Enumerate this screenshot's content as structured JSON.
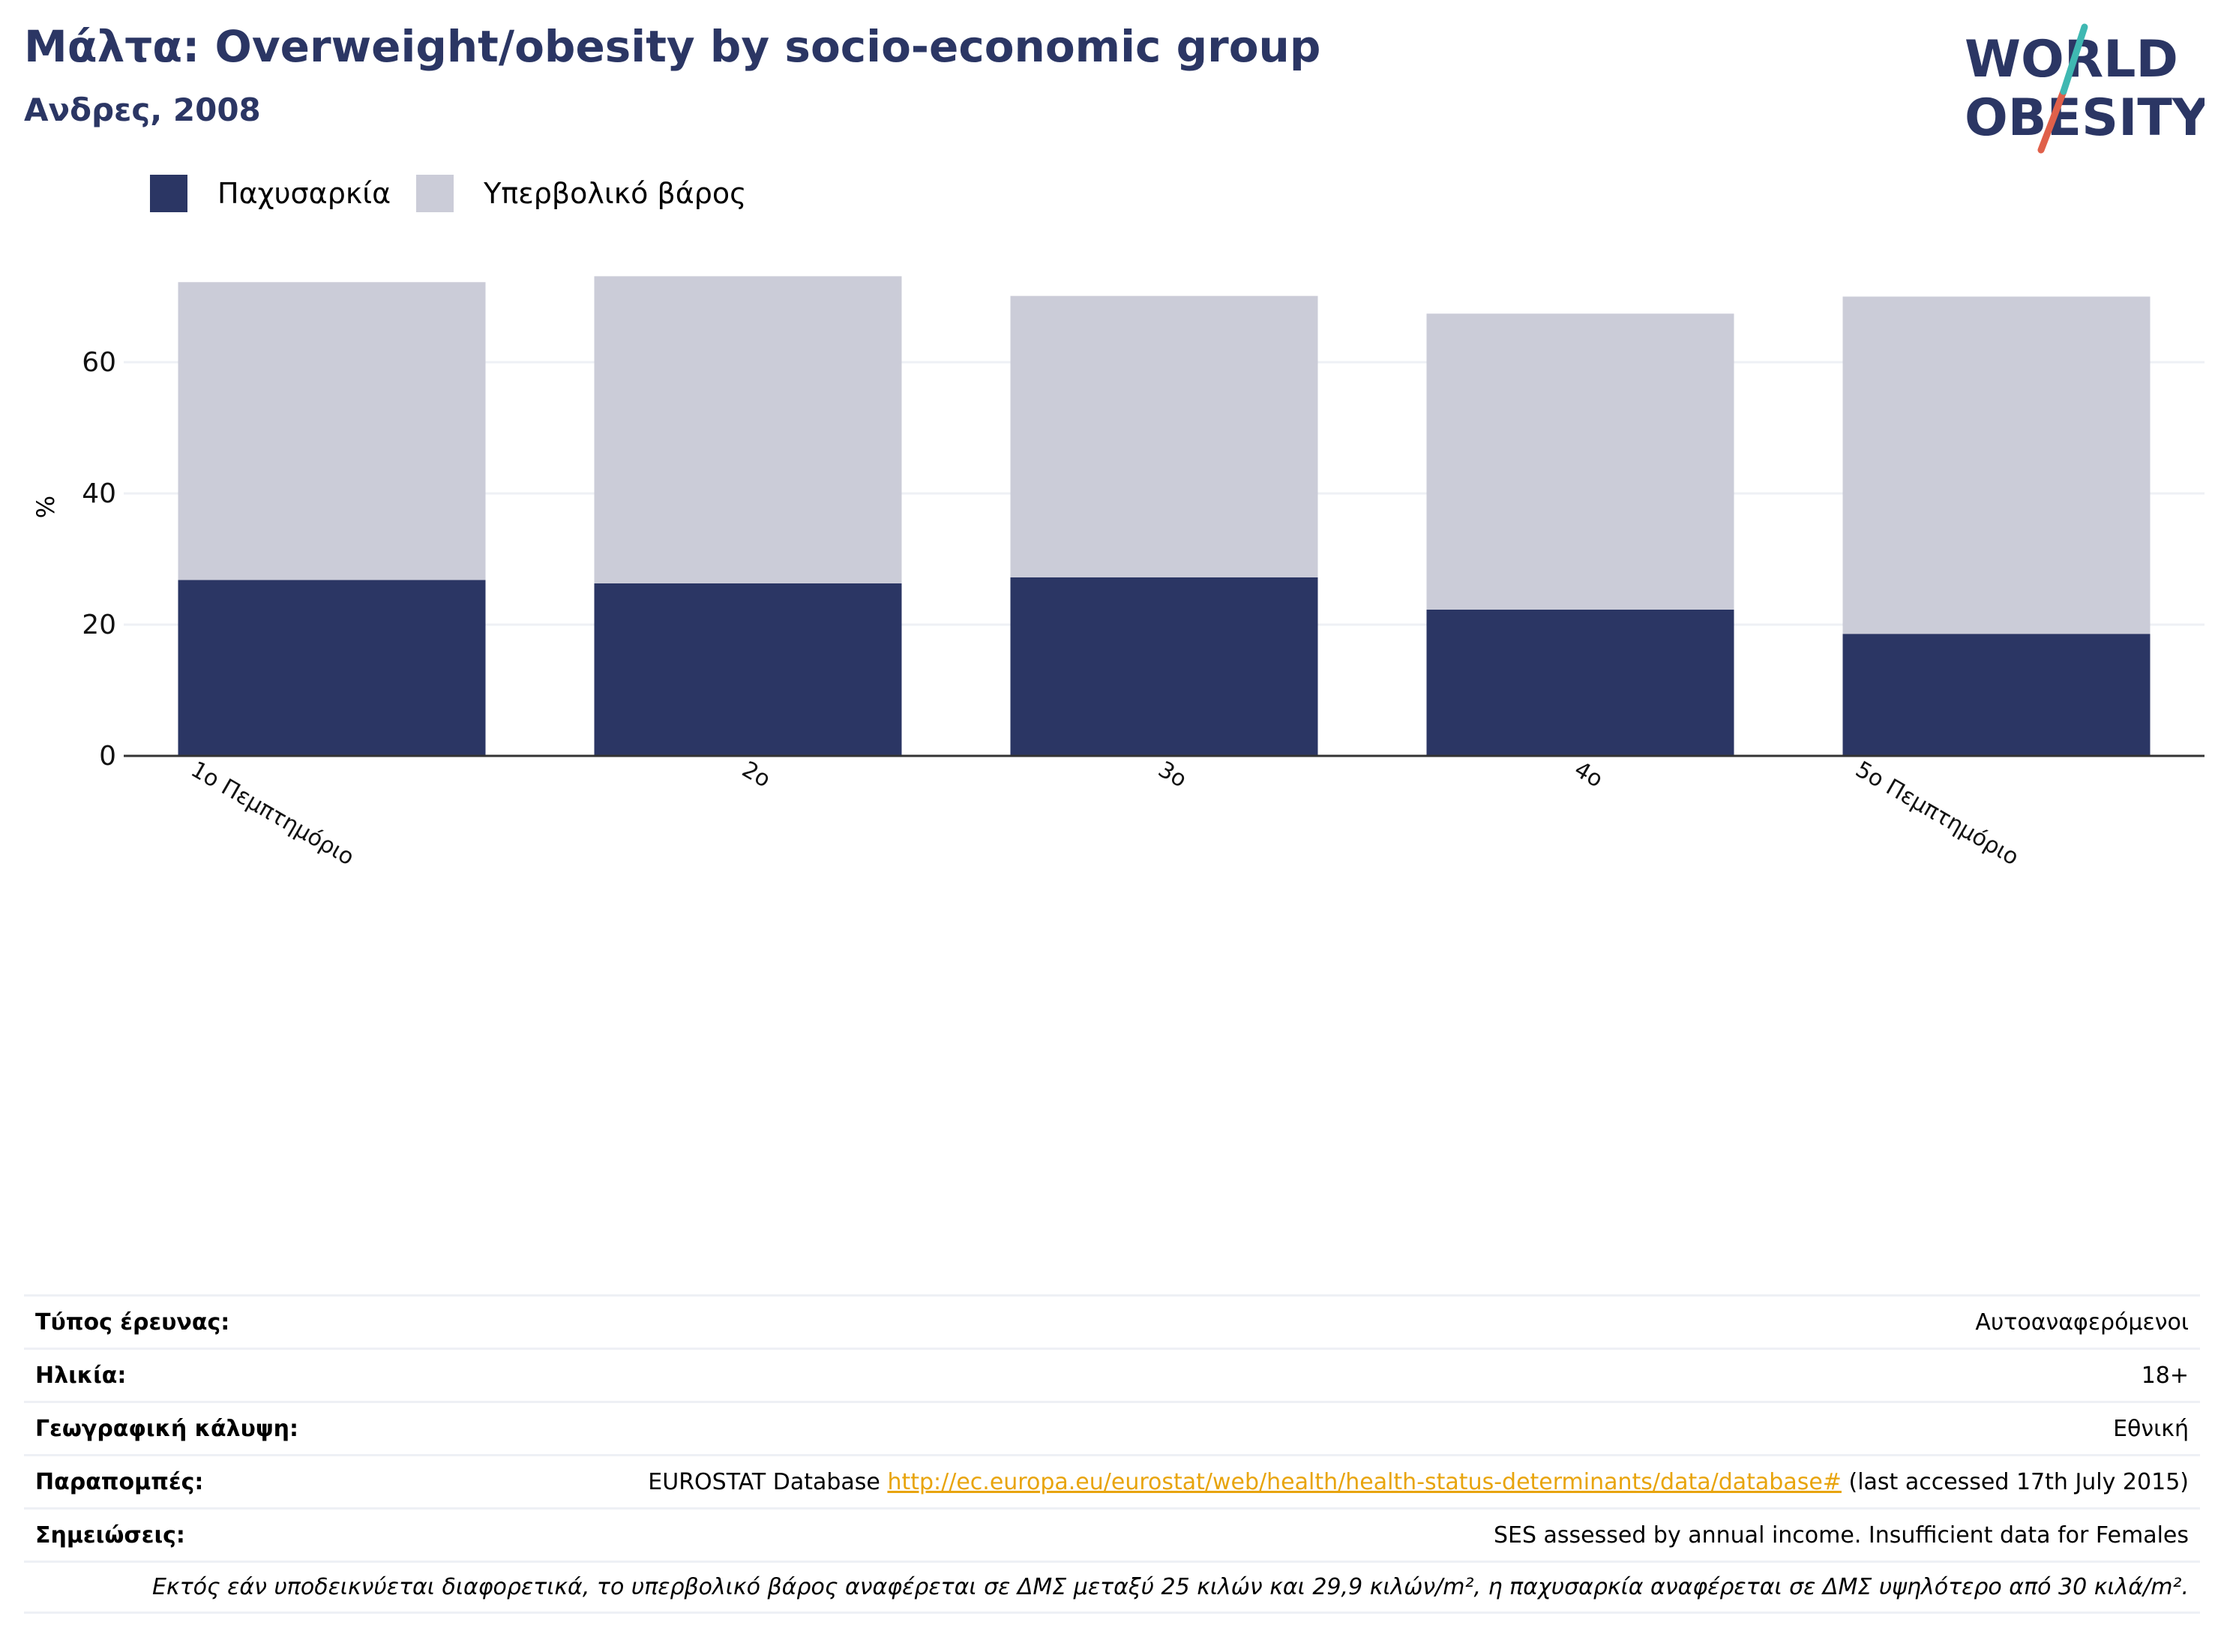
{
  "header": {
    "title": "Μάλτα: Overweight/obesity by socio-economic group",
    "subtitle": "Ανδρες, 2008"
  },
  "logo": {
    "line1": "WORLD",
    "line2": "OBESITY"
  },
  "colors": {
    "obesity": "#2b3664",
    "overweight": "#cbccd8",
    "title": "#2b3664",
    "grid": "#eef0f5",
    "axis": "#333333",
    "link": "#e8a40c"
  },
  "chart_data": {
    "type": "bar",
    "stacked": true,
    "categories": [
      "1ο Πεμπτημόριο",
      "2ο",
      "3ο",
      "4ο",
      "5ο Πεμπτημόριο"
    ],
    "series": [
      {
        "name": "Παχυσαρκία",
        "values": [
          26.8,
          26.3,
          27.2,
          22.3,
          18.6
        ]
      },
      {
        "name": "Υπερβολικό βάρος",
        "values": [
          45.4,
          46.8,
          42.9,
          45.1,
          51.4
        ]
      }
    ],
    "ylabel": "%",
    "ylim": [
      0,
      78
    ],
    "yticks": [
      0,
      20,
      40,
      60
    ],
    "grid": true,
    "legend": "top-left"
  },
  "info": {
    "rows": [
      {
        "label": "Τύπος έρευνας:",
        "value": "Αυτοαναφερόμενοι"
      },
      {
        "label": "Ηλικία:",
        "value": "18+"
      },
      {
        "label": "Γεωγραφική κάλυψη:",
        "value": "Εθνική"
      },
      {
        "label": "Σημειώσεις:",
        "value": "SES assessed by annual income. Insufficient data for Females"
      }
    ],
    "references": {
      "label": "Παραπομπές:",
      "prefix": "EUROSTAT Database",
      "link": "http://ec.europa.eu/eurostat/web/health/health-status-determinants/data/database#",
      "suffix": "(last accessed 17th July 2015)"
    },
    "note": "Εκτός εάν υποδεικνύεται διαφορετικά, το υπερβολικό βάρος αναφέρεται σε ΔΜΣ μεταξύ 25 κιλών και 29,9 κιλών/m², η παχυσαρκία αναφέρεται σε ΔΜΣ υψηλότερο από 30 κιλά/m²."
  }
}
